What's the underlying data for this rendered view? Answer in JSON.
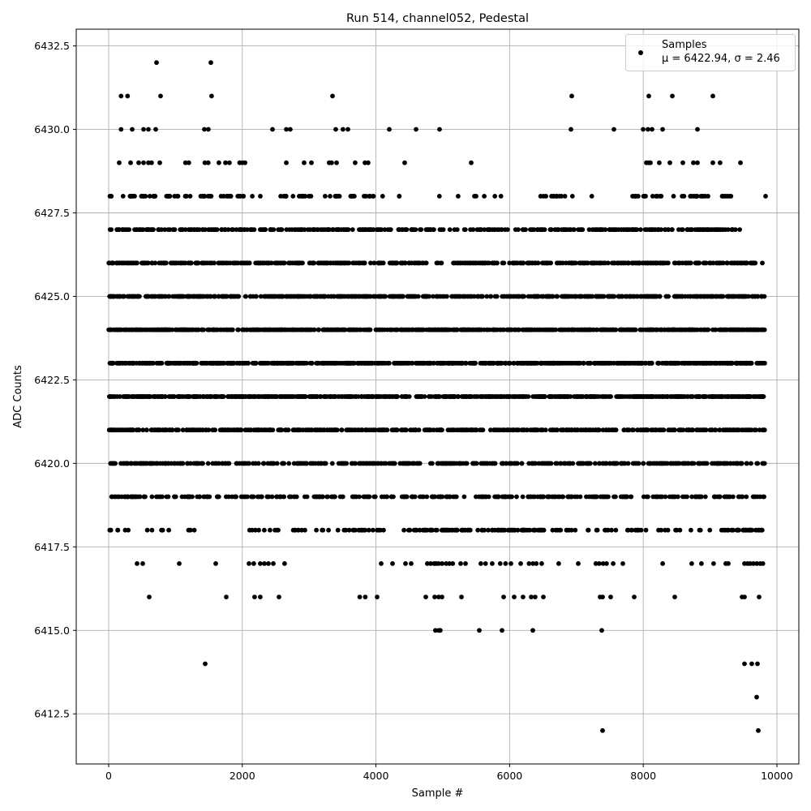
{
  "chart_data": {
    "type": "scatter",
    "title": "Run 514, channel052, Pedestal",
    "xlabel": "Sample #",
    "ylabel": "ADC Counts",
    "xlim": [
      -485,
      10328
    ],
    "ylim": [
      6411.0,
      6433.0
    ],
    "xticks": [
      0,
      2000,
      4000,
      6000,
      8000,
      10000
    ],
    "xtick_labels": [
      "0",
      "2000",
      "4000",
      "6000",
      "8000",
      "10000"
    ],
    "yticks": [
      6412.5,
      6415.0,
      6417.5,
      6420.0,
      6422.5,
      6425.0,
      6427.5,
      6430.0,
      6432.5
    ],
    "ytick_labels": [
      "6412.5",
      "6415.0",
      "6417.5",
      "6420.0",
      "6422.5",
      "6425.0",
      "6427.5",
      "6430.0",
      "6432.5"
    ],
    "grid": true,
    "legend": {
      "placement": "top-right",
      "entries": [
        {
          "label": "Samples",
          "stats": "μ = 6422.94, σ = 2.46"
        }
      ]
    },
    "marker_color": "#000000",
    "grid_color": "#b0b0b0",
    "series": [
      {
        "name": "Samples",
        "mean": 6422.94,
        "sigma": 2.46,
        "sparse_points": [
          [
            716,
            6432
          ],
          [
            1529,
            6432
          ],
          [
            186,
            6431
          ],
          [
            283,
            6431
          ],
          [
            777,
            6431
          ],
          [
            1541,
            6431
          ],
          [
            3350,
            6431
          ],
          [
            6930,
            6431
          ],
          [
            8083,
            6431
          ],
          [
            8435,
            6431
          ],
          [
            9041,
            6431
          ],
          [
            186,
            6430
          ],
          [
            352,
            6430
          ],
          [
            522,
            6430
          ],
          [
            595,
            6430
          ],
          [
            704,
            6430
          ],
          [
            1432,
            6430
          ],
          [
            1492,
            6430
          ],
          [
            2452,
            6430
          ],
          [
            2658,
            6430
          ],
          [
            2718,
            6430
          ],
          [
            3398,
            6430
          ],
          [
            3507,
            6430
          ],
          [
            3580,
            6430
          ],
          [
            4199,
            6430
          ],
          [
            4600,
            6430
          ],
          [
            4952,
            6430
          ],
          [
            6918,
            6430
          ],
          [
            7561,
            6430
          ],
          [
            7998,
            6430
          ],
          [
            8070,
            6430
          ],
          [
            8131,
            6430
          ],
          [
            8289,
            6430
          ],
          [
            8811,
            6430
          ],
          [
            158,
            6429
          ],
          [
            328,
            6429
          ],
          [
            449,
            6429
          ],
          [
            522,
            6429
          ],
          [
            595,
            6429
          ],
          [
            643,
            6429
          ],
          [
            765,
            6429
          ],
          [
            1150,
            6429
          ],
          [
            1200,
            6429
          ],
          [
            1440,
            6429
          ],
          [
            1490,
            6429
          ],
          [
            1650,
            6429
          ],
          [
            1748,
            6429
          ],
          [
            1808,
            6429
          ],
          [
            1960,
            6429
          ],
          [
            2002,
            6429
          ],
          [
            2040,
            6429
          ],
          [
            2658,
            6429
          ],
          [
            2925,
            6429
          ],
          [
            3034,
            6429
          ],
          [
            3300,
            6429
          ],
          [
            3337,
            6429
          ],
          [
            3410,
            6429
          ],
          [
            3689,
            6429
          ],
          [
            3835,
            6429
          ],
          [
            3883,
            6429
          ],
          [
            4430,
            6429
          ],
          [
            5425,
            6429
          ],
          [
            8046,
            6429
          ],
          [
            8080,
            6429
          ],
          [
            8107,
            6429
          ],
          [
            8240,
            6429
          ],
          [
            8398,
            6429
          ],
          [
            8592,
            6429
          ],
          [
            8750,
            6429
          ],
          [
            8811,
            6429
          ],
          [
            9041,
            6429
          ],
          [
            9150,
            6429
          ],
          [
            9454,
            6429
          ],
          [
            607,
            6416
          ],
          [
            1760,
            6416
          ],
          [
            2184,
            6416
          ],
          [
            2269,
            6416
          ],
          [
            2549,
            6416
          ],
          [
            3758,
            6416
          ],
          [
            3840,
            6416
          ],
          [
            4017,
            6416
          ],
          [
            4745,
            6416
          ],
          [
            4879,
            6416
          ],
          [
            4939,
            6416
          ],
          [
            4988,
            6416
          ],
          [
            5279,
            6416
          ],
          [
            5910,
            6416
          ],
          [
            6068,
            6416
          ],
          [
            6201,
            6416
          ],
          [
            6323,
            6416
          ],
          [
            6383,
            6416
          ],
          [
            6505,
            6416
          ],
          [
            7354,
            6416
          ],
          [
            7391,
            6416
          ],
          [
            7512,
            6416
          ],
          [
            7864,
            6416
          ],
          [
            8471,
            6416
          ],
          [
            9478,
            6416
          ],
          [
            9515,
            6416
          ],
          [
            9733,
            6416
          ],
          [
            4890,
            6415
          ],
          [
            4939,
            6415
          ],
          [
            4963,
            6415
          ],
          [
            5546,
            6415
          ],
          [
            5886,
            6415
          ],
          [
            6347,
            6415
          ],
          [
            7379,
            6415
          ],
          [
            1444,
            6414
          ],
          [
            9515,
            6414
          ],
          [
            9624,
            6414
          ],
          [
            9709,
            6414
          ],
          [
            9697,
            6413
          ],
          [
            7391,
            6412
          ],
          [
            9721,
            6412
          ],
          [
            425,
            6417
          ],
          [
            510,
            6417
          ],
          [
            1056,
            6417
          ],
          [
            1602,
            6417
          ],
          [
            2100,
            6417
          ],
          [
            2172,
            6417
          ],
          [
            2269,
            6417
          ],
          [
            2330,
            6417
          ],
          [
            2391,
            6417
          ],
          [
            2464,
            6417
          ],
          [
            2633,
            6417
          ],
          [
            4078,
            6417
          ],
          [
            4248,
            6417
          ],
          [
            4442,
            6417
          ],
          [
            4527,
            6417
          ],
          [
            4769,
            6417
          ],
          [
            4820,
            6417
          ],
          [
            4870,
            6417
          ],
          [
            4900,
            6417
          ],
          [
            4939,
            6417
          ],
          [
            4990,
            6417
          ],
          [
            5050,
            6417
          ],
          [
            5100,
            6417
          ],
          [
            5150,
            6417
          ],
          [
            5267,
            6417
          ],
          [
            5340,
            6417
          ],
          [
            5570,
            6417
          ],
          [
            5640,
            6417
          ],
          [
            5740,
            6417
          ],
          [
            5860,
            6417
          ],
          [
            5940,
            6417
          ],
          [
            6020,
            6417
          ],
          [
            6165,
            6417
          ],
          [
            6290,
            6417
          ],
          [
            6350,
            6417
          ],
          [
            6400,
            6417
          ],
          [
            6480,
            6417
          ],
          [
            6735,
            6417
          ],
          [
            7027,
            6417
          ],
          [
            7290,
            6417
          ],
          [
            7340,
            6417
          ],
          [
            7400,
            6417
          ],
          [
            7450,
            6417
          ],
          [
            7550,
            6417
          ],
          [
            7695,
            6417
          ],
          [
            8290,
            6417
          ],
          [
            8725,
            6417
          ],
          [
            8871,
            6417
          ],
          [
            9053,
            6417
          ],
          [
            9235,
            6417
          ],
          [
            9272,
            6417
          ],
          [
            9515,
            6417
          ],
          [
            9560,
            6417
          ],
          [
            9600,
            6417
          ],
          [
            9650,
            6417
          ],
          [
            9700,
            6417
          ],
          [
            9750,
            6417
          ],
          [
            9790,
            6417
          ]
        ],
        "dense_levels": [
          {
            "y": 6428,
            "segments": [
              [
                0,
                60,
                3
              ],
              [
                180,
                390,
                8
              ],
              [
                460,
                730,
                10
              ],
              [
                790,
                1060,
                9
              ],
              [
                1130,
                1240,
                4
              ],
              [
                1330,
                1540,
                8
              ],
              [
                1660,
                1860,
                7
              ],
              [
                1920,
                2060,
                5
              ],
              [
                2150,
                2150,
                1
              ],
              [
                2270,
                2270,
                1
              ],
              [
                2570,
                2770,
                7
              ],
              [
                2850,
                3070,
                8
              ],
              [
                3240,
                3240,
                1
              ],
              [
                3310,
                3480,
                7
              ],
              [
                3580,
                3725,
                5
              ],
              [
                3820,
                3970,
                6
              ],
              [
                4100,
                4100,
                1
              ],
              [
                4310,
                4370,
                2
              ],
              [
                4950,
                4950,
                1
              ],
              [
                5230,
                5230,
                1
              ],
              [
                5450,
                5510,
                2
              ],
              [
                5620,
                5620,
                1
              ],
              [
                5780,
                5780,
                1
              ],
              [
                5870,
                5870,
                1
              ],
              [
                6430,
                6830,
                12
              ],
              [
                6940,
                6940,
                1
              ],
              [
                7230,
                7230,
                1
              ],
              [
                7820,
                8050,
                8
              ],
              [
                8140,
                8300,
                6
              ],
              [
                8450,
                8970,
                16
              ],
              [
                9150,
                9390,
                6
              ],
              [
                9830,
                9830,
                1
              ]
            ]
          },
          {
            "y": 6427,
            "segments": [
              [
                0,
                4900,
                230
              ],
              [
                4950,
                5500,
                10
              ],
              [
                5500,
                6400,
                30
              ],
              [
                6400,
                9450,
                150
              ]
            ]
          },
          {
            "y": 6426,
            "segments": [
              [
                0,
                4800,
                280
              ],
              [
                4850,
                5250,
                10
              ],
              [
                5250,
                9800,
                260
              ]
            ]
          },
          {
            "y": 6425,
            "segments": [
              [
                0,
                9820,
                600
              ]
            ]
          },
          {
            "y": 6424,
            "segments": [
              [
                0,
                9820,
                750
              ]
            ]
          },
          {
            "y": 6423,
            "segments": [
              [
                0,
                9820,
                750
              ]
            ]
          },
          {
            "y": 6422,
            "segments": [
              [
                0,
                9820,
                750
              ]
            ]
          },
          {
            "y": 6421,
            "segments": [
              [
                0,
                9820,
                550
              ]
            ]
          },
          {
            "y": 6420,
            "segments": [
              [
                0,
                9820,
                420
              ]
            ]
          },
          {
            "y": 6419,
            "segments": [
              [
                0,
                9820,
                330
              ]
            ]
          },
          {
            "y": 6418,
            "segments": [
              [
                0,
                3500,
                35
              ],
              [
                3500,
                4500,
                20
              ],
              [
                4500,
                6500,
                110
              ],
              [
                6500,
                9400,
                50
              ],
              [
                9400,
                9780,
                30
              ]
            ]
          }
        ]
      }
    ]
  }
}
